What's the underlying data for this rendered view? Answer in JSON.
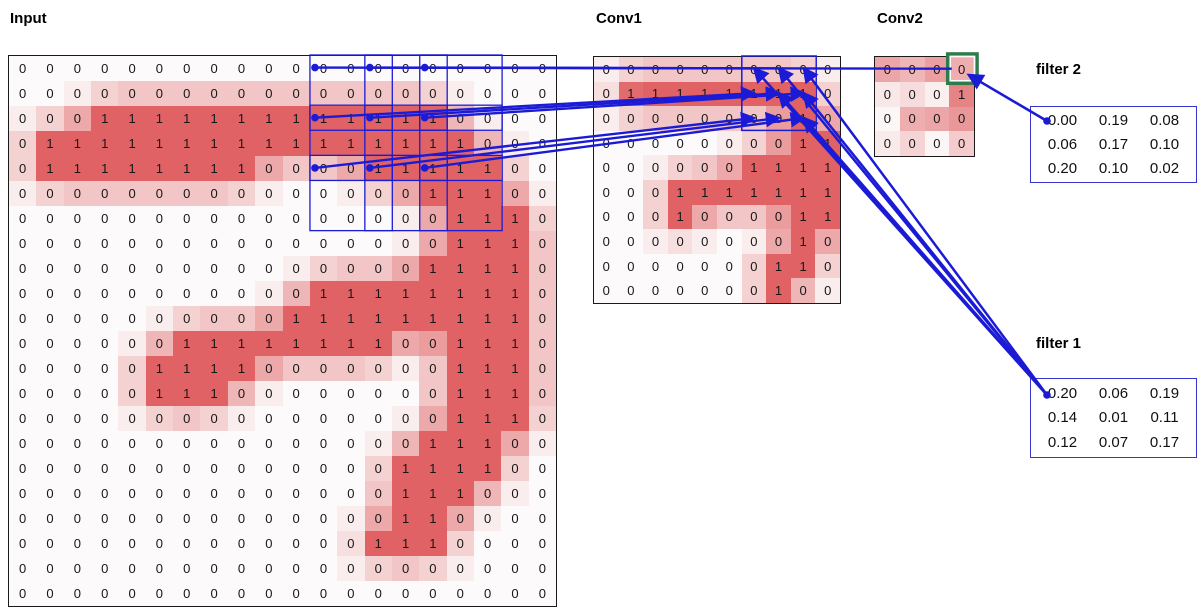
{
  "titles": {
    "input": "Input",
    "conv1": "Conv1",
    "conv2": "Conv2"
  },
  "filters": {
    "filter1": {
      "label": "filter 1",
      "values": [
        [
          "0.20",
          "0.06",
          "0.19"
        ],
        [
          "0.14",
          "0.01",
          "0.11"
        ],
        [
          "0.12",
          "0.07",
          "0.17"
        ]
      ]
    },
    "filter2": {
      "label": "filter 2",
      "values": [
        [
          "0.00",
          "0.19",
          "0.08"
        ],
        [
          "0.06",
          "0.17",
          "0.10"
        ],
        [
          "0.20",
          "0.10",
          "0.02"
        ]
      ]
    }
  },
  "grids": {
    "input": {
      "rows": 22,
      "cols": 20,
      "values": [
        "00000000000000000000",
        "00000000000000000000",
        "00011111111111110000",
        "01111111111111111000",
        "01111111100001111100",
        "00000000000000011100",
        "00000000000000001110",
        "00000000000000001110",
        "00000000000000011110",
        "00000000000111111110",
        "00000000001111111110",
        "00000011111111001110",
        "00000111100000001110",
        "00000111000000001110",
        "00000000000000001110",
        "00000000000000011100",
        "00000000000000111100",
        "00000000000000111000",
        "00000000000000110000",
        "00000000000001110000",
        "00000000000000000000",
        "00000000000000000000"
      ]
    },
    "conv1": {
      "rows": 10,
      "cols": 10,
      "values": [
        "0000000000",
        "0111111110",
        "0000000010",
        "0000000011",
        "0000001111",
        "0001111111",
        "0001000011",
        "0000000010",
        "0000000110",
        "0000000100"
      ]
    },
    "conv2": {
      "rows": 4,
      "cols": 4,
      "values": [
        "0000",
        "0001",
        "0000",
        "0000"
      ],
      "intensity": [
        [
          0.55,
          0.45,
          0.6,
          0.5
        ],
        [
          0.12,
          0.2,
          0.08,
          0.78
        ],
        [
          0.02,
          0.5,
          0.55,
          0.65
        ],
        [
          0.1,
          0.25,
          0.03,
          0.3
        ]
      ]
    }
  },
  "colors": {
    "accent_blue": "#1b1bd6",
    "highlight_green": "#2d7c4a",
    "cell_red_strong": "#e05f60",
    "grid_border": "#1a1a1a"
  },
  "annotations": {
    "input_receptive_fields": [
      {
        "row": 1,
        "col": 12
      },
      {
        "row": 1,
        "col": 14
      },
      {
        "row": 1,
        "col": 16
      },
      {
        "row": 3,
        "col": 12
      },
      {
        "row": 3,
        "col": 14
      },
      {
        "row": 3,
        "col": 16
      },
      {
        "row": 5,
        "col": 12
      },
      {
        "row": 5,
        "col": 14
      },
      {
        "row": 5,
        "col": 16
      }
    ],
    "field_size": 3,
    "conv1_region": {
      "row": 1,
      "col": 7,
      "rows": 3,
      "cols": 3
    },
    "conv2_highlight_cell": {
      "row": 1,
      "col": 4
    }
  },
  "connections": {
    "input_to_conv1": [
      {
        "fr": 1,
        "fc": 12,
        "tr": 1,
        "tc": 7
      },
      {
        "fr": 1,
        "fc": 14,
        "tr": 1,
        "tc": 8
      },
      {
        "fr": 1,
        "fc": 16,
        "tr": 1,
        "tc": 9
      },
      {
        "fr": 3,
        "fc": 12,
        "tr": 2,
        "tc": 7
      },
      {
        "fr": 3,
        "fc": 14,
        "tr": 2,
        "tc": 8
      },
      {
        "fr": 3,
        "fc": 16,
        "tr": 2,
        "tc": 9
      },
      {
        "fr": 5,
        "fc": 12,
        "tr": 3,
        "tc": 7
      },
      {
        "fr": 5,
        "fc": 14,
        "tr": 3,
        "tc": 8
      },
      {
        "fr": 5,
        "fc": 16,
        "tr": 3,
        "tc": 9
      }
    ],
    "conv1_to_conv2": {
      "from": [
        1,
        9
      ],
      "to": [
        1,
        4
      ]
    },
    "filter2_to_conv2_cell": [
      1,
      4
    ],
    "filter1_to_conv1_cells": [
      [
        1,
        7
      ],
      [
        1,
        8
      ],
      [
        1,
        9
      ],
      [
        2,
        8
      ],
      [
        2,
        9
      ],
      [
        3,
        9
      ]
    ]
  }
}
